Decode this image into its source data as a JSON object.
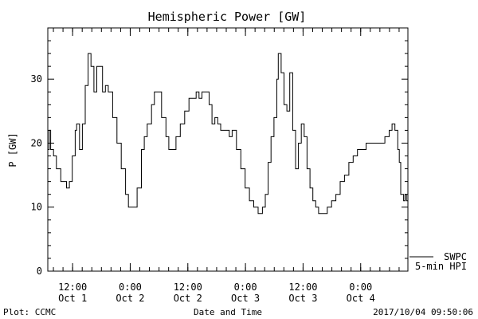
{
  "chart_data": {
    "type": "line",
    "title": "Hemispheric Power [GW]",
    "xlabel": "Date and Time",
    "ylabel": "P [GW]",
    "ylim": [
      0,
      38
    ],
    "yticks": [
      0,
      10,
      20,
      30
    ],
    "xlim": [
      "2017-10-01T06:50",
      "2017-10-04T09:50"
    ],
    "xticks": [
      {
        "time": "2017-10-01T12:00",
        "label1": "12:00",
        "label2": "Oct 1"
      },
      {
        "time": "2017-10-02T00:00",
        "label1": "0:00",
        "label2": "Oct 2"
      },
      {
        "time": "2017-10-02T12:00",
        "label1": "12:00",
        "label2": "Oct 2"
      },
      {
        "time": "2017-10-03T00:00",
        "label1": "0:00",
        "label2": "Oct 3"
      },
      {
        "time": "2017-10-03T12:00",
        "label1": "12:00",
        "label2": "Oct 3"
      },
      {
        "time": "2017-10-04T00:00",
        "label1": "0:00",
        "label2": "Oct 4"
      }
    ],
    "grid": false,
    "legend_position": "bottom-right",
    "series": [
      {
        "name": "SWPC",
        "color": "#000000",
        "points": [
          [
            "2017-10-01T06:50",
            19
          ],
          [
            "2017-10-01T07:08",
            22
          ],
          [
            "2017-10-01T07:26",
            19
          ],
          [
            "2017-10-01T08:02",
            18
          ],
          [
            "2017-10-01T08:38",
            16
          ],
          [
            "2017-10-01T09:32",
            14
          ],
          [
            "2017-10-01T10:44",
            13
          ],
          [
            "2017-10-01T11:20",
            14
          ],
          [
            "2017-10-01T11:56",
            18
          ],
          [
            "2017-10-01T12:32",
            22
          ],
          [
            "2017-10-01T12:50",
            23
          ],
          [
            "2017-10-01T13:26",
            19
          ],
          [
            "2017-10-01T14:02",
            23
          ],
          [
            "2017-10-01T14:38",
            29
          ],
          [
            "2017-10-01T15:14",
            34
          ],
          [
            "2017-10-01T15:50",
            32
          ],
          [
            "2017-10-01T16:26",
            28
          ],
          [
            "2017-10-01T17:02",
            32
          ],
          [
            "2017-10-01T17:38",
            32
          ],
          [
            "2017-10-01T18:14",
            28
          ],
          [
            "2017-10-01T18:50",
            29
          ],
          [
            "2017-10-01T19:26",
            28
          ],
          [
            "2017-10-01T20:20",
            24
          ],
          [
            "2017-10-01T21:14",
            20
          ],
          [
            "2017-10-01T22:08",
            16
          ],
          [
            "2017-10-01T23:02",
            12
          ],
          [
            "2017-10-01T23:38",
            10
          ],
          [
            "2017-10-02T00:50",
            10
          ],
          [
            "2017-10-02T01:26",
            13
          ],
          [
            "2017-10-02T02:20",
            19
          ],
          [
            "2017-10-02T02:56",
            21
          ],
          [
            "2017-10-02T03:32",
            23
          ],
          [
            "2017-10-02T04:26",
            26
          ],
          [
            "2017-10-02T05:02",
            28
          ],
          [
            "2017-10-02T05:56",
            28
          ],
          [
            "2017-10-02T06:32",
            24
          ],
          [
            "2017-10-02T07:26",
            21
          ],
          [
            "2017-10-02T08:02",
            19
          ],
          [
            "2017-10-02T08:38",
            19
          ],
          [
            "2017-10-02T09:32",
            21
          ],
          [
            "2017-10-02T10:26",
            23
          ],
          [
            "2017-10-02T11:20",
            25
          ],
          [
            "2017-10-02T12:14",
            27
          ],
          [
            "2017-10-02T13:08",
            27
          ],
          [
            "2017-10-02T13:44",
            28
          ],
          [
            "2017-10-02T14:20",
            27
          ],
          [
            "2017-10-02T14:56",
            28
          ],
          [
            "2017-10-02T15:50",
            28
          ],
          [
            "2017-10-02T16:26",
            26
          ],
          [
            "2017-10-02T17:02",
            23
          ],
          [
            "2017-10-02T17:38",
            24
          ],
          [
            "2017-10-02T18:14",
            23
          ],
          [
            "2017-10-02T18:50",
            22
          ],
          [
            "2017-10-02T19:44",
            22
          ],
          [
            "2017-10-02T20:38",
            21
          ],
          [
            "2017-10-02T21:14",
            22
          ],
          [
            "2017-10-02T22:08",
            19
          ],
          [
            "2017-10-02T23:02",
            16
          ],
          [
            "2017-10-02T23:56",
            13
          ],
          [
            "2017-10-03T00:50",
            11
          ],
          [
            "2017-10-03T01:44",
            10
          ],
          [
            "2017-10-03T02:38",
            9
          ],
          [
            "2017-10-03T03:32",
            10
          ],
          [
            "2017-10-03T04:08",
            12
          ],
          [
            "2017-10-03T04:44",
            17
          ],
          [
            "2017-10-03T05:20",
            21
          ],
          [
            "2017-10-03T05:56",
            24
          ],
          [
            "2017-10-03T06:32",
            30
          ],
          [
            "2017-10-03T06:50",
            34
          ],
          [
            "2017-10-03T07:26",
            31
          ],
          [
            "2017-10-03T08:02",
            26
          ],
          [
            "2017-10-03T08:38",
            25
          ],
          [
            "2017-10-03T09:14",
            31
          ],
          [
            "2017-10-03T09:50",
            22
          ],
          [
            "2017-10-03T10:26",
            16
          ],
          [
            "2017-10-03T11:02",
            20
          ],
          [
            "2017-10-03T11:38",
            23
          ],
          [
            "2017-10-03T12:14",
            21
          ],
          [
            "2017-10-03T12:50",
            16
          ],
          [
            "2017-10-03T13:26",
            13
          ],
          [
            "2017-10-03T14:02",
            11
          ],
          [
            "2017-10-03T14:38",
            10
          ],
          [
            "2017-10-03T15:14",
            9
          ],
          [
            "2017-10-03T16:08",
            9
          ],
          [
            "2017-10-03T17:02",
            10
          ],
          [
            "2017-10-03T17:56",
            11
          ],
          [
            "2017-10-03T18:50",
            12
          ],
          [
            "2017-10-03T19:44",
            14
          ],
          [
            "2017-10-03T20:38",
            15
          ],
          [
            "2017-10-03T21:32",
            17
          ],
          [
            "2017-10-03T22:26",
            18
          ],
          [
            "2017-10-03T23:20",
            19
          ],
          [
            "2017-10-04T00:14",
            19
          ],
          [
            "2017-10-04T01:08",
            20
          ],
          [
            "2017-10-04T02:38",
            20
          ],
          [
            "2017-10-04T04:08",
            20
          ],
          [
            "2017-10-04T05:02",
            21
          ],
          [
            "2017-10-04T05:56",
            22
          ],
          [
            "2017-10-04T06:32",
            23
          ],
          [
            "2017-10-04T07:08",
            22
          ],
          [
            "2017-10-04T07:44",
            19
          ],
          [
            "2017-10-04T08:02",
            17
          ],
          [
            "2017-10-04T08:20",
            12
          ],
          [
            "2017-10-04T08:38",
            12
          ],
          [
            "2017-10-04T08:56",
            11
          ],
          [
            "2017-10-04T09:14",
            12
          ],
          [
            "2017-10-04T09:32",
            11
          ],
          [
            "2017-10-04T09:50",
            10
          ]
        ]
      },
      {
        "name": "5-min HPI",
        "color": "#000000",
        "points": []
      }
    ]
  },
  "footer": {
    "left": "Plot: CCMC",
    "center": "Date and Time",
    "right": "2017/10/04 09:50:06"
  }
}
